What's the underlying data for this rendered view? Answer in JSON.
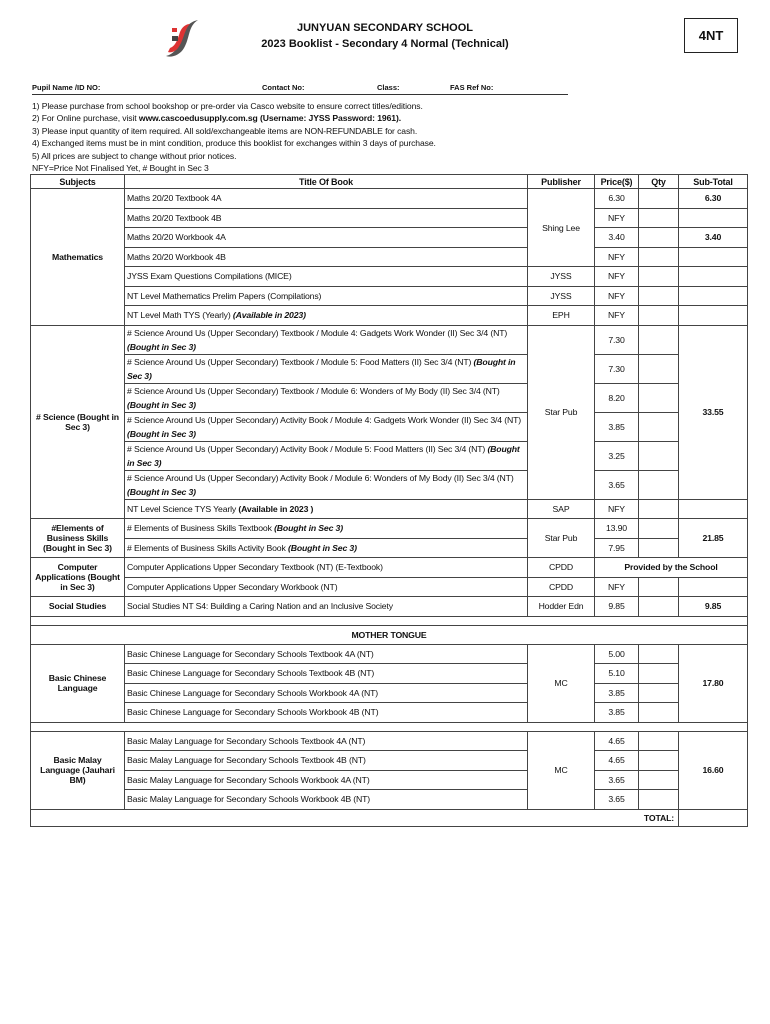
{
  "header": {
    "school": "JUNYUAN SECONDARY SCHOOL",
    "booklist": "2023 Booklist - Secondary 4 Normal (Technical)",
    "code": "4NT"
  },
  "fields": {
    "pupil": "Pupil Name /ID NO:",
    "contact": "Contact No:",
    "class": "Class:",
    "fas": "FAS Ref No:"
  },
  "notes": [
    "1) Please purchase from school bookshop or pre-order via Casco website to ensure correct titles/editions.",
    "2) For Online purchase, visit ",
    "3) Please input quantity of item required. All sold/exchangeable items are NON-REFUNDABLE for cash.",
    "4) Exchanged items must be in mint condition, produce this booklist for exchanges within 3 days of purchase.",
    "5) All prices are subject to change without prior notices.",
    "NFY=Price Not Finalised Yet,  # Bought in Sec 3"
  ],
  "note2_bold": "www.cascoedusupply.com.sg (Username: JYSS  Password: 1961).",
  "columns": {
    "subjects": "Subjects",
    "title": "Title Of Book",
    "publisher": "Publisher",
    "price": "Price($)",
    "qty": "Qty",
    "subtotal": "Sub-Total"
  },
  "sections": [
    {
      "subject": "Mathematics",
      "rows": [
        {
          "title": "Maths 20/20 Textbook 4A",
          "publisher": "Shing Lee",
          "price": "6.30",
          "subtotal": "6.30"
        },
        {
          "title": "Maths 20/20 Textbook 4B",
          "publisher": null,
          "price": "NFY",
          "subtotal": ""
        },
        {
          "title": "Maths 20/20 Workbook 4A",
          "publisher": null,
          "price": "3.40",
          "subtotal": "3.40"
        },
        {
          "title": "Maths 20/20 Workbook 4B",
          "publisher": null,
          "price": "NFY",
          "subtotal": ""
        },
        {
          "title": "JYSS Exam Questions Compilations (MICE)",
          "publisher": "JYSS",
          "price": "NFY",
          "subtotal": ""
        },
        {
          "title": "NT Level Mathematics Prelim Papers (Compilations)",
          "publisher": "JYSS",
          "price": "NFY",
          "subtotal": ""
        },
        {
          "title": "NT Level Math TYS (Yearly) ",
          "em": "(Available in 2023)",
          "em_style": "bi",
          "publisher": "EPH",
          "price": "NFY",
          "subtotal": ""
        }
      ]
    },
    {
      "subject": "# Science (Bought in Sec 3)",
      "rows": [
        {
          "title": "# Science Around Us (Upper Secondary) Textbook / Module 4: Gadgets Work Wonder (II) Sec 3/4 (NT) ",
          "em": "(Bought in Sec 3)",
          "em_style": "bi",
          "publisher": "Star Pub",
          "price": "7.30",
          "subtotal": "33.55",
          "tall": true
        },
        {
          "title": "# Science Around Us (Upper Secondary) Textbook / Module 5: Food Matters (II) Sec 3/4 (NT) ",
          "em": "(Bought in Sec 3)",
          "em_style": "bi",
          "publisher": null,
          "price": "7.30",
          "subtotal": null,
          "tall": true
        },
        {
          "title": "# Science Around Us (Upper Secondary) Textbook / Module 6: Wonders of My Body (II) Sec 3/4 (NT) ",
          "em": "(Bought in Sec 3)",
          "em_style": "bi",
          "publisher": null,
          "price": "8.20",
          "subtotal": null,
          "tall": true
        },
        {
          "title": "# Science Around Us (Upper Secondary) Activity Book / Module 4: Gadgets Work Wonder (II) Sec 3/4 (NT) ",
          "em": "(Bought in Sec 3)",
          "em_style": "bi",
          "publisher": null,
          "price": "3.85",
          "subtotal": null,
          "tall": true
        },
        {
          "title": "# Science Around Us (Upper Secondary) Activity Book / Module 5: Food Matters (II) Sec 3/4 (NT) ",
          "em": "(Bought in Sec 3)",
          "em_style": "bi",
          "publisher": null,
          "price": "3.25",
          "subtotal": null,
          "tall": true
        },
        {
          "title": "# Science Around Us (Upper Secondary) Activity Book / Module 6: Wonders of My Body (II) Sec 3/4 (NT) ",
          "em": "(Bought in Sec 3)",
          "em_style": "bi",
          "publisher": null,
          "price": "3.65",
          "subtotal": null,
          "tall": true
        },
        {
          "title": "NT Level Science TYS Yearly ",
          "em": "(Available in 2023 )",
          "em_style": "b",
          "publisher": "SAP",
          "price": "NFY",
          "subtotal": ""
        }
      ]
    },
    {
      "subject": "#Elements of Business Skills (Bought in Sec 3)",
      "rows": [
        {
          "title": "# Elements of Business Skills Textbook ",
          "em": "(Bought in Sec 3)",
          "em_style": "bi",
          "publisher": "Star Pub",
          "price": "13.90",
          "subtotal": "21.85"
        },
        {
          "title": "# Elements of Business Skills Activity Book ",
          "em": "(Bought in Sec 3)",
          "em_style": "bi",
          "publisher": null,
          "price": "7.95",
          "subtotal": null
        }
      ]
    },
    {
      "subject": "Computer Applications (Bought in Sec 3)",
      "rows": [
        {
          "title": "Computer Applications Upper Secondary Textbook (NT)  (E-Textbook)",
          "publisher": "CPDD",
          "provided": "Provided by the School"
        },
        {
          "title": "Computer Applications Upper Secondary  Workbook (NT)",
          "publisher": "CPDD",
          "price": "NFY",
          "subtotal": ""
        }
      ]
    },
    {
      "subject": "Social Studies",
      "rows": [
        {
          "title": "Social Studies NT S4: Building a Caring Nation and an Inclusive Society",
          "publisher": "Hodder Edn",
          "price": "9.85",
          "subtotal": "9.85"
        }
      ]
    },
    {
      "blank": true
    },
    {
      "heading": "MOTHER TONGUE"
    },
    {
      "subject": "Basic Chinese Language",
      "rows": [
        {
          "title": "Basic Chinese Language for Secondary Schools Textbook 4A (NT)",
          "publisher": "MC",
          "price": "5.00",
          "subtotal": "17.80"
        },
        {
          "title": "Basic Chinese Language for Secondary Schools Textbook 4B (NT)",
          "publisher": null,
          "price": "5.10",
          "subtotal": null
        },
        {
          "title": "Basic Chinese Language for Secondary Schools Workbook 4A (NT)",
          "publisher": null,
          "price": "3.85",
          "subtotal": null
        },
        {
          "title": "Basic Chinese Language for Secondary Schools Workbook 4B (NT)",
          "publisher": null,
          "price": "3.85",
          "subtotal": null
        }
      ]
    },
    {
      "blank": true
    },
    {
      "subject": "Basic Malay Language (Jauhari BM)",
      "rows": [
        {
          "title": "Basic Malay Language for Secondary Schools Textbook 4A (NT)",
          "publisher": "MC",
          "price": "4.65",
          "subtotal": "16.60"
        },
        {
          "title": "Basic Malay Language for Secondary Schools Textbook 4B (NT)",
          "publisher": null,
          "price": "4.65",
          "subtotal": null
        },
        {
          "title": "Basic Malay Language for Secondary Schools Workbook 4A (NT)",
          "publisher": null,
          "price": "3.65",
          "subtotal": null
        },
        {
          "title": "Basic Malay Language for Secondary Schools Workbook 4B (NT)",
          "publisher": null,
          "price": "3.65",
          "subtotal": null
        }
      ]
    }
  ],
  "total_label": "TOTAL:"
}
